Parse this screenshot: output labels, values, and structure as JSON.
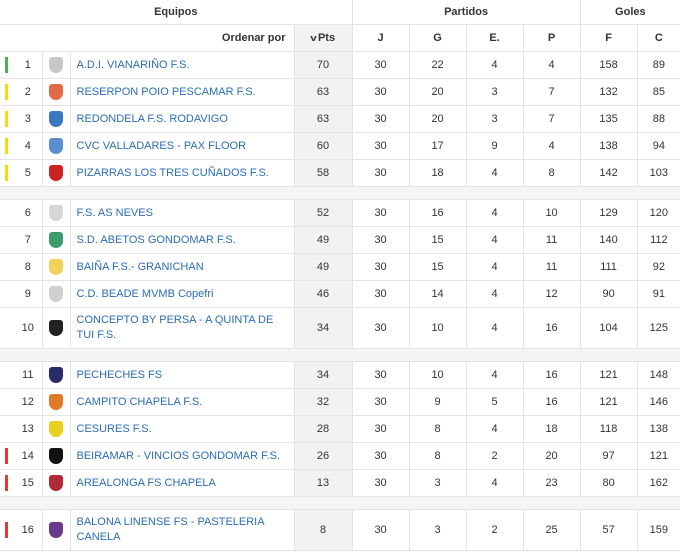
{
  "header": {
    "equipos": "Equipos",
    "partidos": "Partidos",
    "goles": "Goles",
    "ordenar": "Ordenar por",
    "pts": "Pts",
    "j": "J",
    "g": "G",
    "e": "E.",
    "p": "P",
    "f": "F",
    "c": "C"
  },
  "colors": {
    "green": "#4caf50",
    "yellow": "#f5dc00",
    "red": "#e53935",
    "link": "#2a6db5"
  },
  "rows": [
    {
      "pos": "1",
      "team": "A.D.I. VIANARIÑO F.S.",
      "pts": "70",
      "j": "30",
      "g": "22",
      "e": "4",
      "p": "4",
      "f": "158",
      "c": "89",
      "mark": "green",
      "crest": "#c8c8c8",
      "icon": "vianarino-crest-icon"
    },
    {
      "pos": "2",
      "team": "RESERPON POIO PESCAMAR F.S.",
      "pts": "63",
      "j": "30",
      "g": "20",
      "e": "3",
      "p": "7",
      "f": "132",
      "c": "85",
      "mark": "yellow",
      "crest": "#e06a4a",
      "icon": "reserpon-crest-icon"
    },
    {
      "pos": "3",
      "team": "REDONDELA F.S. RODAVIGO",
      "pts": "63",
      "j": "30",
      "g": "20",
      "e": "3",
      "p": "7",
      "f": "135",
      "c": "88",
      "mark": "yellow",
      "crest": "#3a78c0",
      "icon": "redondela-crest-icon"
    },
    {
      "pos": "4",
      "team": "CVC VALLADARES - PAX FLOOR",
      "pts": "60",
      "j": "30",
      "g": "17",
      "e": "9",
      "p": "4",
      "f": "138",
      "c": "94",
      "mark": "yellow",
      "crest": "#5b8fd0",
      "icon": "valladares-crest-icon"
    },
    {
      "pos": "5",
      "team": "PIZARRAS LOS TRES CUÑADOS F.S.",
      "pts": "58",
      "j": "30",
      "g": "18",
      "e": "4",
      "p": "8",
      "f": "142",
      "c": "103",
      "mark": "yellow",
      "crest": "#cc2222",
      "icon": "pizarras-crest-icon"
    },
    {
      "gap": true
    },
    {
      "pos": "6",
      "team": "F.S. AS NEVES",
      "pts": "52",
      "j": "30",
      "g": "16",
      "e": "4",
      "p": "10",
      "f": "129",
      "c": "120",
      "crest": "#d6d6d6",
      "icon": "as-neves-crest-icon"
    },
    {
      "pos": "7",
      "team": "S.D. ABETOS GONDOMAR F.S.",
      "pts": "49",
      "j": "30",
      "g": "15",
      "e": "4",
      "p": "11",
      "f": "140",
      "c": "112",
      "crest": "#3d9a6a",
      "icon": "abetos-crest-icon"
    },
    {
      "pos": "8",
      "team": "BAIÑA F.S.- GRANICHAN",
      "pts": "49",
      "j": "30",
      "g": "15",
      "e": "4",
      "p": "11",
      "f": "111",
      "c": "92",
      "crest": "#f0d25a",
      "icon": "baina-crest-icon"
    },
    {
      "pos": "9",
      "team": "C.D. BEADE MVMB Copefri",
      "pts": "46",
      "j": "30",
      "g": "14",
      "e": "4",
      "p": "12",
      "f": "90",
      "c": "91",
      "crest": "#d0d0d0",
      "icon": "beade-crest-icon"
    },
    {
      "pos": "10",
      "team": "CONCEPTO BY PERSA - A QUINTA DE TUI F.S.",
      "pts": "34",
      "j": "30",
      "g": "10",
      "e": "4",
      "p": "16",
      "f": "104",
      "c": "125",
      "tall": true,
      "crest": "#222222",
      "icon": "concepto-crest-icon"
    },
    {
      "gap": true
    },
    {
      "pos": "11",
      "team": "PECHECHES FS",
      "pts": "34",
      "j": "30",
      "g": "10",
      "e": "4",
      "p": "16",
      "f": "121",
      "c": "148",
      "crest": "#2b2b6a",
      "icon": "pecheches-crest-icon"
    },
    {
      "pos": "12",
      "team": "CAMPITO CHAPELA F.S.",
      "pts": "32",
      "j": "30",
      "g": "9",
      "e": "5",
      "p": "16",
      "f": "121",
      "c": "146",
      "crest": "#e07a2a",
      "icon": "campito-crest-icon"
    },
    {
      "pos": "13",
      "team": "CESURES F.S.",
      "pts": "28",
      "j": "30",
      "g": "8",
      "e": "4",
      "p": "18",
      "f": "118",
      "c": "138",
      "crest": "#e8d020",
      "icon": "cesures-crest-icon"
    },
    {
      "pos": "14",
      "team": "BEIRAMAR - VINCIOS GONDOMAR F.S.",
      "pts": "26",
      "j": "30",
      "g": "8",
      "e": "2",
      "p": "20",
      "f": "97",
      "c": "121",
      "mark": "red",
      "crest": "#111111",
      "icon": "beiramar-crest-icon"
    },
    {
      "pos": "15",
      "team": "AREALONGA FS CHAPELA",
      "pts": "13",
      "j": "30",
      "g": "3",
      "e": "4",
      "p": "23",
      "f": "80",
      "c": "162",
      "mark": "red",
      "crest": "#b02a3a",
      "icon": "arealonga-crest-icon"
    },
    {
      "gap": true
    },
    {
      "pos": "16",
      "team": "BALONA LINENSE FS - PASTELERIA CANELA",
      "pts": "8",
      "j": "30",
      "g": "3",
      "e": "2",
      "p": "25",
      "f": "57",
      "c": "159",
      "mark": "red",
      "tall": true,
      "crest": "#6a3a8a",
      "icon": "balona-crest-icon"
    }
  ]
}
